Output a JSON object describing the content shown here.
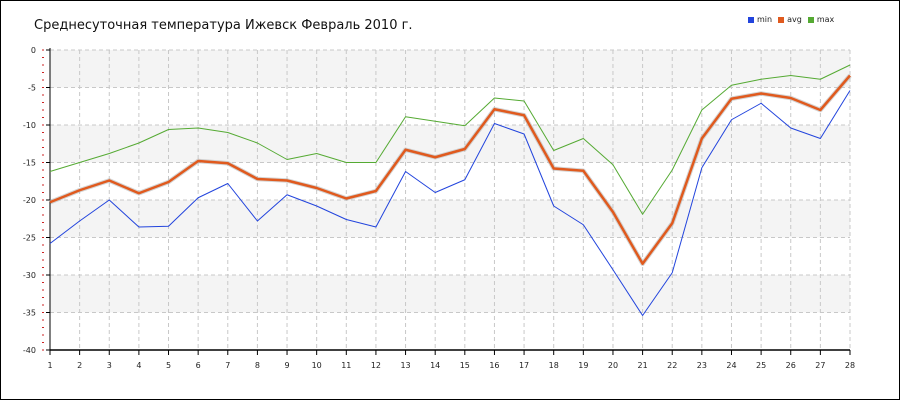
{
  "chart_data": {
    "type": "line",
    "title": "Среднесуточная температура Ижевск  Февраль 2010 г.",
    "x": [
      1,
      2,
      3,
      4,
      5,
      6,
      7,
      8,
      9,
      10,
      11,
      12,
      13,
      14,
      15,
      16,
      17,
      18,
      19,
      20,
      21,
      22,
      23,
      24,
      25,
      26,
      27,
      28
    ],
    "ylim": [
      -40,
      0
    ],
    "yticks": [
      0,
      -5,
      -10,
      -15,
      -20,
      -25,
      -30,
      -35,
      -40
    ],
    "grid": true,
    "legend_position": "top-right",
    "series": [
      {
        "name": "min",
        "color": "#2244dd",
        "values": [
          -25.8,
          -22.8,
          -20.0,
          -23.6,
          -23.5,
          -19.7,
          -17.8,
          -22.8,
          -19.3,
          -20.8,
          -22.6,
          -23.6,
          -16.2,
          -19.0,
          -17.3,
          -9.8,
          -11.2,
          -20.8,
          -23.3,
          -29.3,
          -35.4,
          -29.7,
          -15.7,
          -9.3,
          -7.1,
          -10.4,
          -11.8,
          -5.4
        ]
      },
      {
        "name": "avg",
        "color": "#e05a1e",
        "values": [
          -20.3,
          -18.7,
          -17.4,
          -19.1,
          -17.6,
          -14.8,
          -15.1,
          -17.2,
          -17.4,
          -18.4,
          -19.8,
          -18.8,
          -13.3,
          -14.3,
          -13.2,
          -7.9,
          -8.7,
          -15.8,
          -16.1,
          -21.6,
          -28.5,
          -23.1,
          -11.8,
          -6.5,
          -5.8,
          -6.4,
          -8.0,
          -3.4
        ]
      },
      {
        "name": "max",
        "color": "#55aa33",
        "values": [
          -16.2,
          -15.0,
          -13.8,
          -12.4,
          -10.6,
          -10.4,
          -11.0,
          -12.4,
          -14.6,
          -13.8,
          -15.0,
          -15.0,
          -8.9,
          -9.5,
          -10.1,
          -6.4,
          -6.8,
          -13.4,
          -11.8,
          -15.3,
          -21.9,
          -16.0,
          -8.0,
          -4.7,
          -3.9,
          -3.4,
          -3.9,
          -2.0
        ]
      }
    ]
  }
}
